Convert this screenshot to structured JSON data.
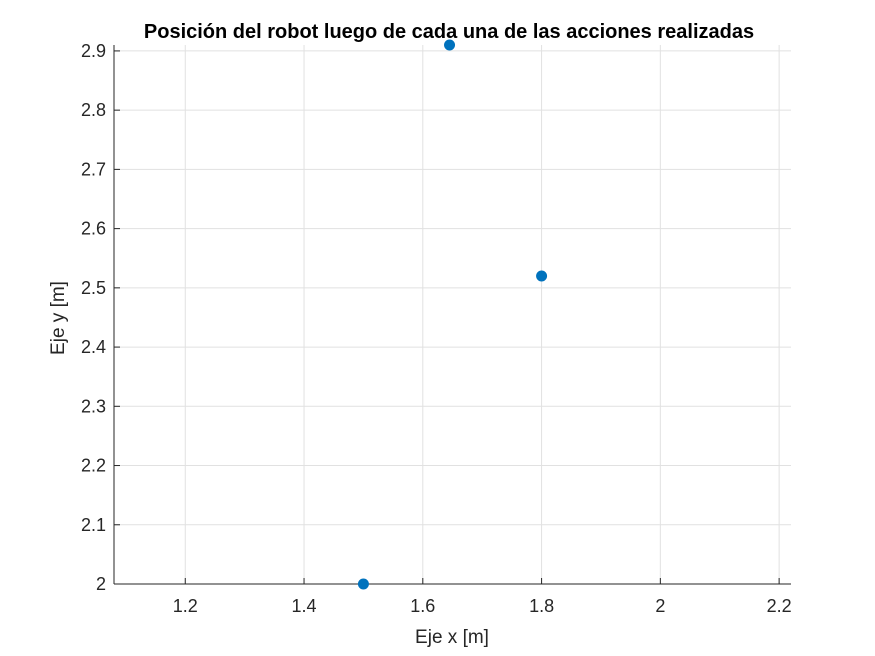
{
  "chart_data": {
    "type": "scatter",
    "title": "Posición del robot luego de cada una de las acciones realizadas",
    "xlabel": "Eje x [m]",
    "ylabel": "Eje y [m]",
    "xlim": [
      1.08,
      2.22
    ],
    "ylim": [
      2.0,
      2.91
    ],
    "xticks": [
      1.2,
      1.4,
      1.6,
      1.8,
      2.0,
      2.2
    ],
    "xtick_labels": [
      "1.2",
      "1.4",
      "1.6",
      "1.8",
      "2",
      "2.2"
    ],
    "yticks": [
      2.0,
      2.1,
      2.2,
      2.3,
      2.4,
      2.5,
      2.6,
      2.7,
      2.8,
      2.9
    ],
    "ytick_labels": [
      "2",
      "2.1",
      "2.2",
      "2.3",
      "2.4",
      "2.5",
      "2.6",
      "2.7",
      "2.8",
      "2.9"
    ],
    "grid": true,
    "marker_color": "#0072BD",
    "points": [
      {
        "x": 1.5,
        "y": 2.0
      },
      {
        "x": 1.8,
        "y": 2.52
      },
      {
        "x": 1.645,
        "y": 2.91
      }
    ]
  }
}
